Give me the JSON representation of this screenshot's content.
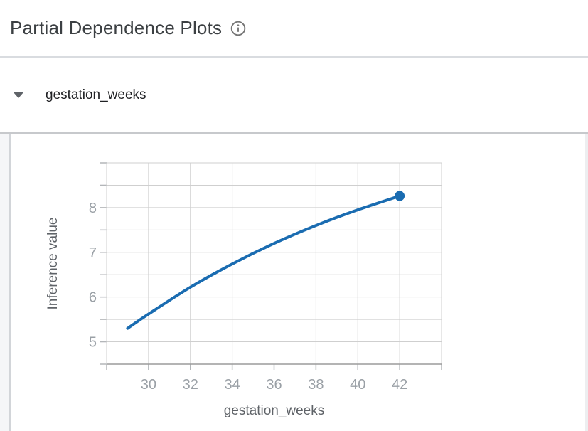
{
  "header": {
    "title": "Partial Dependence Plots",
    "info_icon": "info-outline-icon",
    "title_color": "#3c4043",
    "icon_color": "#757575"
  },
  "section": {
    "label": "gestation_weeks",
    "collapse_icon": "triangle-down-icon",
    "expanded": true
  },
  "chart_data": {
    "type": "line",
    "title": "",
    "xlabel": "gestation_weeks",
    "ylabel": "Inference value",
    "x": [
      29,
      30,
      32,
      34,
      36,
      38,
      40,
      42
    ],
    "y": [
      5.3,
      5.62,
      6.22,
      6.74,
      7.2,
      7.6,
      7.95,
      8.26
    ],
    "xlim": [
      28,
      44
    ],
    "ylim": [
      4.5,
      9.0
    ],
    "x_grid_step": 2,
    "y_grid_step": 0.5,
    "x_tick_labels": [
      30,
      32,
      34,
      36,
      38,
      40,
      42
    ],
    "y_tick_labels": [
      5,
      6,
      7,
      8
    ],
    "grid": true,
    "legend": "none",
    "endpoint_marker": {
      "x": 42,
      "y": 8.26,
      "radius": 7
    },
    "line_color": "#1a6cb1",
    "grid_color": "#cfcfcf",
    "axis_color": "#9b9b9b",
    "tick_color": "#b3b6b9",
    "tick_label_color": "#9aa0a6",
    "axis_title_color": "#5f6368",
    "line_width": 4
  }
}
